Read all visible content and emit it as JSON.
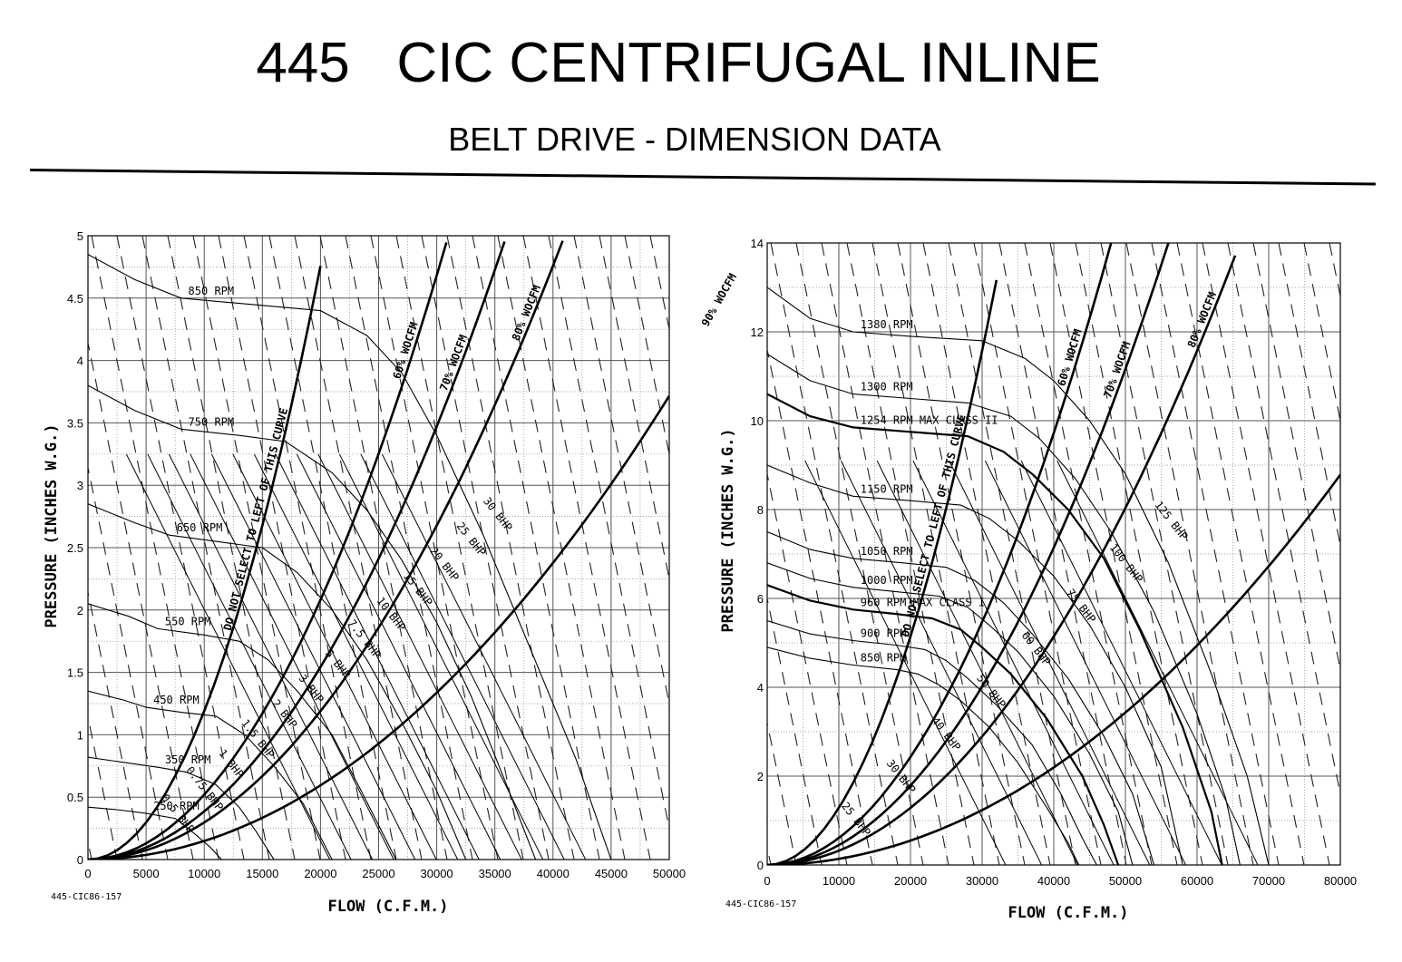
{
  "header": {
    "title": "445   CIC CENTRIFUGAL INLINE",
    "subtitle": "BELT DRIVE - DIMENSION DATA"
  },
  "chart_data": [
    {
      "type": "line",
      "drawing_code": "445-CIC86-157",
      "xlabel": "FLOW (C.F.M.)",
      "ylabel": "PRESSURE (INCHES W.G.)",
      "xlim": [
        0,
        50000
      ],
      "ylim": [
        0,
        5
      ],
      "x_ticks": [
        "0",
        "5000",
        "10000",
        "15000",
        "20000",
        "25000",
        "30000",
        "35000",
        "40000",
        "45000",
        "50000"
      ],
      "y_ticks": [
        "0",
        "0.5",
        "1",
        "1.5",
        "2",
        "2.5",
        "3",
        "3.5",
        "4",
        "4.5",
        "5"
      ],
      "grid": true,
      "rpm_curves": [
        {
          "name": "850 RPM",
          "points": [
            [
              0,
              4.85
            ],
            [
              4000,
              4.65
            ],
            [
              8000,
              4.5
            ],
            [
              14000,
              4.45
            ],
            [
              20000,
              4.4
            ],
            [
              24000,
              4.2
            ],
            [
              27000,
              3.9
            ],
            [
              30000,
              3.4
            ],
            [
              34000,
              2.6
            ],
            [
              38000,
              1.7
            ],
            [
              42000,
              0.8
            ],
            [
              45000,
              0
            ]
          ]
        },
        {
          "name": "750 RPM",
          "points": [
            [
              0,
              3.8
            ],
            [
              4000,
              3.6
            ],
            [
              8000,
              3.45
            ],
            [
              13000,
              3.4
            ],
            [
              17000,
              3.35
            ],
            [
              21000,
              3.1
            ],
            [
              24000,
              2.8
            ],
            [
              27000,
              2.4
            ],
            [
              30000,
              1.9
            ],
            [
              33000,
              1.3
            ],
            [
              36000,
              0.6
            ],
            [
              38500,
              0
            ]
          ]
        },
        {
          "name": "650 RPM",
          "points": [
            [
              0,
              2.85
            ],
            [
              4000,
              2.7
            ],
            [
              7000,
              2.6
            ],
            [
              11000,
              2.55
            ],
            [
              15000,
              2.5
            ],
            [
              18000,
              2.3
            ],
            [
              21000,
              2.0
            ],
            [
              24000,
              1.6
            ],
            [
              27000,
              1.1
            ],
            [
              30000,
              0.55
            ],
            [
              32500,
              0
            ]
          ]
        },
        {
          "name": "550 RPM",
          "points": [
            [
              0,
              2.05
            ],
            [
              3500,
              1.95
            ],
            [
              6000,
              1.85
            ],
            [
              10000,
              1.8
            ],
            [
              13000,
              1.75
            ],
            [
              15500,
              1.6
            ],
            [
              18000,
              1.35
            ],
            [
              21000,
              1.0
            ],
            [
              23500,
              0.55
            ],
            [
              26500,
              0
            ]
          ]
        },
        {
          "name": "450 RPM",
          "points": [
            [
              0,
              1.35
            ],
            [
              3000,
              1.28
            ],
            [
              5000,
              1.22
            ],
            [
              8000,
              1.18
            ],
            [
              11000,
              1.15
            ],
            [
              13500,
              1.0
            ],
            [
              16000,
              0.75
            ],
            [
              18500,
              0.45
            ],
            [
              21000,
              0
            ]
          ]
        },
        {
          "name": "350 RPM",
          "points": [
            [
              0,
              0.82
            ],
            [
              3000,
              0.78
            ],
            [
              6000,
              0.74
            ],
            [
              8500,
              0.7
            ],
            [
              11000,
              0.6
            ],
            [
              13000,
              0.42
            ],
            [
              14500,
              0.22
            ],
            [
              16000,
              0
            ]
          ]
        },
        {
          "name": "250 RPM",
          "points": [
            [
              0,
              0.42
            ],
            [
              2500,
              0.4
            ],
            [
              5000,
              0.37
            ],
            [
              7500,
              0.33
            ],
            [
              9000,
              0.22
            ],
            [
              10500,
              0.1
            ],
            [
              11500,
              0
            ]
          ]
        }
      ],
      "system_curves": [
        {
          "name": "DO NOT SELECT TO LEFT OF THIS CURVE",
          "x_at_5inwg": 20500
        },
        {
          "name": "60% WOCFM",
          "x_at_5inwg": 31000
        },
        {
          "name": "70% WOCFM",
          "x_at_5inwg": 36000
        },
        {
          "name": "80% WOCFM",
          "x_at_5inwg": 41000
        },
        {
          "name": "90% WOCFM",
          "x_at_5inwg": 58000
        }
      ],
      "bhp_labels": [
        "0.5 BHP",
        "0.75 BHP",
        "1 BHP",
        "1.5 BHP",
        "2 BHP",
        "3 BHP",
        "5 BHP",
        "7.5 BHP",
        "10 BHP",
        "15 BHP",
        "20 BHP",
        "25 BHP",
        "30 BHP"
      ]
    },
    {
      "type": "line",
      "drawing_code": "445-CIC86-157",
      "xlabel": "FLOW (C.F.M.)",
      "ylabel": "PRESSURE (INCHES W.G.)",
      "xlim": [
        0,
        80000
      ],
      "ylim": [
        0,
        14
      ],
      "x_ticks": [
        "0",
        "10000",
        "20000",
        "30000",
        "40000",
        "50000",
        "60000",
        "70000",
        "80000"
      ],
      "y_ticks": [
        "0",
        "2",
        "4",
        "6",
        "8",
        "10",
        "12",
        "14"
      ],
      "grid": true,
      "rpm_curves": [
        {
          "name": "1380 RPM",
          "points": [
            [
              0,
              13.0
            ],
            [
              6000,
              12.3
            ],
            [
              12000,
              12.0
            ],
            [
              20000,
              11.9
            ],
            [
              30000,
              11.8
            ],
            [
              36000,
              11.4
            ],
            [
              40000,
              10.9
            ],
            [
              45000,
              10.0
            ],
            [
              50000,
              8.8
            ],
            [
              56000,
              6.8
            ],
            [
              62000,
              4.3
            ],
            [
              67000,
              2.0
            ],
            [
              70000,
              0
            ]
          ]
        },
        {
          "name": "1300 RPM",
          "points": [
            [
              0,
              11.5
            ],
            [
              6000,
              10.9
            ],
            [
              12000,
              10.6
            ],
            [
              20000,
              10.5
            ],
            [
              28000,
              10.4
            ],
            [
              34000,
              10.1
            ],
            [
              38000,
              9.6
            ],
            [
              43000,
              8.7
            ],
            [
              48000,
              7.5
            ],
            [
              54000,
              5.7
            ],
            [
              60000,
              3.4
            ],
            [
              64000,
              1.5
            ],
            [
              66000,
              0
            ]
          ]
        },
        {
          "name": "1254 RPM MAX CLASS II",
          "points": [
            [
              0,
              10.6
            ],
            [
              6000,
              10.1
            ],
            [
              12000,
              9.85
            ],
            [
              20000,
              9.75
            ],
            [
              28000,
              9.65
            ],
            [
              33000,
              9.3
            ],
            [
              37000,
              8.8
            ],
            [
              42000,
              8.0
            ],
            [
              47000,
              6.9
            ],
            [
              52000,
              5.3
            ],
            [
              58000,
              3.1
            ],
            [
              62000,
              1.2
            ],
            [
              63500,
              0
            ]
          ]
        },
        {
          "name": "1150 RPM",
          "points": [
            [
              0,
              9.0
            ],
            [
              6000,
              8.6
            ],
            [
              12000,
              8.3
            ],
            [
              20000,
              8.2
            ],
            [
              27000,
              8.1
            ],
            [
              31000,
              7.8
            ],
            [
              35000,
              7.3
            ],
            [
              40000,
              6.5
            ],
            [
              45000,
              5.4
            ],
            [
              50000,
              4.0
            ],
            [
              55000,
              2.2
            ],
            [
              58000,
              0
            ]
          ]
        },
        {
          "name": "1050 RPM",
          "points": [
            [
              0,
              7.5
            ],
            [
              6000,
              7.1
            ],
            [
              12000,
              6.9
            ],
            [
              19000,
              6.8
            ],
            [
              25000,
              6.7
            ],
            [
              29000,
              6.4
            ],
            [
              33000,
              5.9
            ],
            [
              37000,
              5.2
            ],
            [
              42000,
              4.2
            ],
            [
              47000,
              2.9
            ],
            [
              51000,
              1.6
            ],
            [
              54000,
              0
            ]
          ]
        },
        {
          "name": "1000 RPM",
          "points": [
            [
              0,
              6.8
            ],
            [
              6000,
              6.45
            ],
            [
              12000,
              6.25
            ],
            [
              18000,
              6.15
            ],
            [
              24000,
              6.05
            ],
            [
              28000,
              5.8
            ],
            [
              31000,
              5.4
            ],
            [
              35000,
              4.8
            ],
            [
              40000,
              3.8
            ],
            [
              45000,
              2.5
            ],
            [
              49000,
              1.2
            ],
            [
              51000,
              0
            ]
          ]
        },
        {
          "name": "960 RPM MAX CLASS I",
          "points": [
            [
              0,
              6.3
            ],
            [
              6000,
              5.95
            ],
            [
              12000,
              5.75
            ],
            [
              18000,
              5.65
            ],
            [
              23000,
              5.55
            ],
            [
              27000,
              5.3
            ],
            [
              30000,
              4.9
            ],
            [
              34000,
              4.3
            ],
            [
              39000,
              3.3
            ],
            [
              44000,
              2.0
            ],
            [
              47000,
              0.9
            ],
            [
              49000,
              0
            ]
          ]
        },
        {
          "name": "900 RPM",
          "points": [
            [
              0,
              5.5
            ],
            [
              6000,
              5.2
            ],
            [
              12000,
              5.05
            ],
            [
              18000,
              4.95
            ],
            [
              22000,
              4.85
            ],
            [
              25000,
              4.6
            ],
            [
              28000,
              4.2
            ],
            [
              32000,
              3.6
            ],
            [
              37000,
              2.7
            ],
            [
              41000,
              1.6
            ],
            [
              44000,
              0.6
            ],
            [
              46000,
              0
            ]
          ]
        },
        {
          "name": "850 RPM",
          "points": [
            [
              0,
              4.9
            ],
            [
              6000,
              4.65
            ],
            [
              12000,
              4.5
            ],
            [
              18000,
              4.4
            ],
            [
              21000,
              4.3
            ],
            [
              24000,
              4.05
            ],
            [
              27000,
              3.7
            ],
            [
              31000,
              3.1
            ],
            [
              35000,
              2.3
            ],
            [
              39000,
              1.3
            ],
            [
              42000,
              0.5
            ],
            [
              43500,
              0
            ]
          ]
        }
      ],
      "system_curves": [
        {
          "name": "DO NOT SELECT TO LEFT OF THIS CURVE",
          "x_at_14inwg": 33000
        },
        {
          "name": "60% WOCFM",
          "x_at_14inwg": 48000
        },
        {
          "name": "70% WOCFM",
          "x_at_14inwg": 56000
        },
        {
          "name": "80% WOCFM",
          "x_at_14inwg": 66000
        },
        {
          "name": "90% WOCFM",
          "x_at_14inwg": 101000
        }
      ],
      "bhp_labels": [
        "25 BHP",
        "30 BHP",
        "40 BHP",
        "50 BHP",
        "60 BHP",
        "75 BHP",
        "100 BHP",
        "125 BHP"
      ]
    }
  ]
}
